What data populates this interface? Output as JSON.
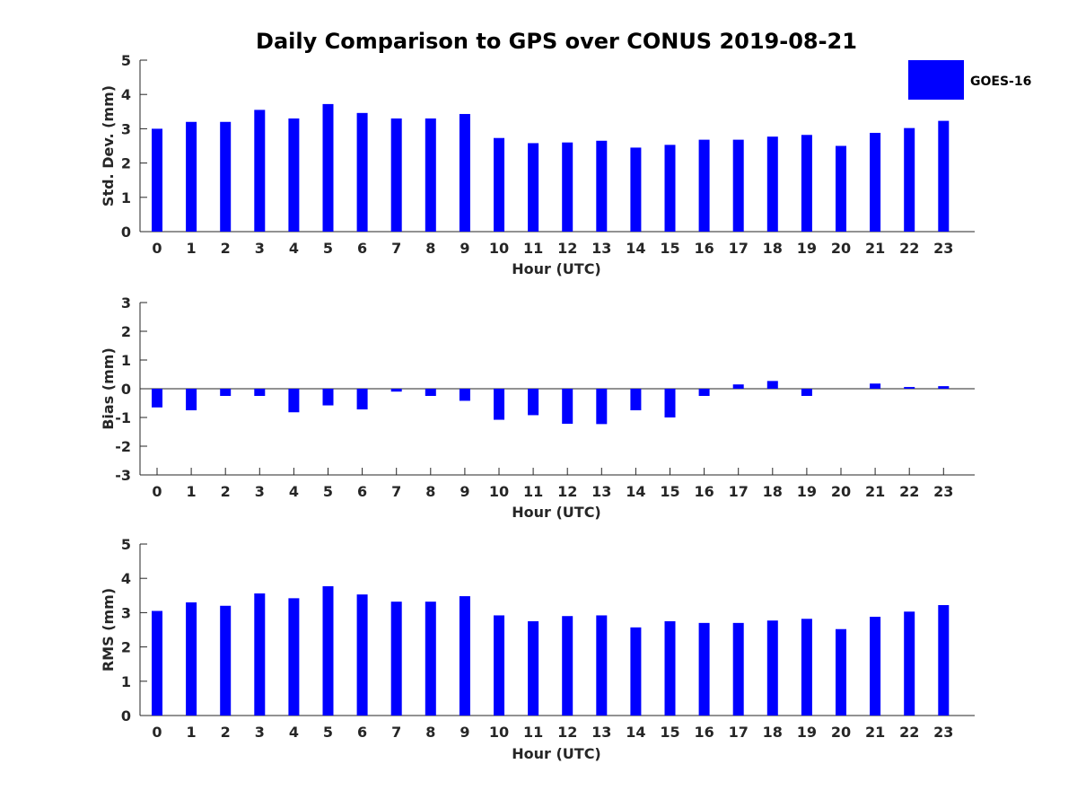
{
  "title": "Daily Comparison to GPS over CONUS 2019-08-21",
  "legend": {
    "label": "GOES-16",
    "color": "#0000ff"
  },
  "chart_data": [
    {
      "type": "bar",
      "title": "Daily Comparison to GPS over CONUS 2019-08-21",
      "xlabel": "Hour (UTC)",
      "ylabel": "Std. Dev. (mm)",
      "ylim": [
        0,
        5
      ],
      "yticks": [
        0,
        1,
        2,
        3,
        4,
        5
      ],
      "categories": [
        "0",
        "1",
        "2",
        "3",
        "4",
        "5",
        "6",
        "7",
        "8",
        "9",
        "10",
        "11",
        "12",
        "13",
        "14",
        "15",
        "16",
        "17",
        "18",
        "19",
        "20",
        "21",
        "22",
        "23"
      ],
      "series": [
        {
          "name": "GOES-16",
          "values": [
            3.0,
            3.2,
            3.2,
            3.55,
            3.3,
            3.72,
            3.46,
            3.3,
            3.3,
            3.43,
            2.73,
            2.58,
            2.6,
            2.65,
            2.45,
            2.53,
            2.68,
            2.68,
            2.77,
            2.82,
            2.5,
            2.88,
            3.02,
            3.23
          ]
        }
      ]
    },
    {
      "type": "bar",
      "xlabel": "Hour (UTC)",
      "ylabel": "Bias (mm)",
      "ylim": [
        -3,
        3
      ],
      "yticks": [
        -3,
        -2,
        -1,
        0,
        1,
        2,
        3
      ],
      "categories": [
        "0",
        "1",
        "2",
        "3",
        "4",
        "5",
        "6",
        "7",
        "8",
        "9",
        "10",
        "11",
        "12",
        "13",
        "14",
        "15",
        "16",
        "17",
        "18",
        "19",
        "20",
        "21",
        "22",
        "23"
      ],
      "series": [
        {
          "name": "GOES-16",
          "values": [
            -0.65,
            -0.75,
            -0.25,
            -0.25,
            -0.82,
            -0.58,
            -0.72,
            -0.1,
            -0.25,
            -0.42,
            -1.08,
            -0.92,
            -1.22,
            -1.23,
            -0.75,
            -1.0,
            -0.25,
            0.15,
            0.27,
            -0.25,
            0.0,
            0.18,
            0.06,
            0.09
          ]
        }
      ]
    },
    {
      "type": "bar",
      "xlabel": "Hour (UTC)",
      "ylabel": "RMS (mm)",
      "ylim": [
        0,
        5
      ],
      "yticks": [
        0,
        1,
        2,
        3,
        4,
        5
      ],
      "categories": [
        "0",
        "1",
        "2",
        "3",
        "4",
        "5",
        "6",
        "7",
        "8",
        "9",
        "10",
        "11",
        "12",
        "13",
        "14",
        "15",
        "16",
        "17",
        "18",
        "19",
        "20",
        "21",
        "22",
        "23"
      ],
      "series": [
        {
          "name": "GOES-16",
          "values": [
            3.05,
            3.3,
            3.2,
            3.56,
            3.42,
            3.77,
            3.53,
            3.32,
            3.32,
            3.48,
            2.92,
            2.75,
            2.9,
            2.92,
            2.57,
            2.75,
            2.7,
            2.7,
            2.77,
            2.82,
            2.52,
            2.88,
            3.03,
            3.22
          ]
        }
      ]
    }
  ]
}
